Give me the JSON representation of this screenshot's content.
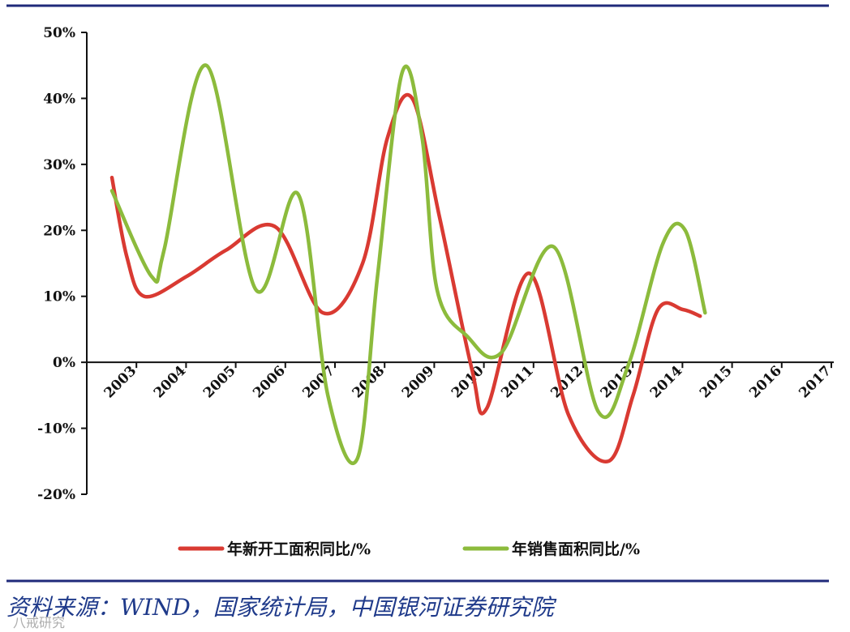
{
  "chart_data": {
    "type": "line",
    "categories": [
      "2003",
      "2004",
      "2005",
      "2006",
      "2007",
      "2008",
      "2009",
      "2010",
      "2011",
      "2012",
      "2013",
      "2014",
      "2015",
      "2016",
      "2017"
    ],
    "y_ticks": [
      "50%",
      "40%",
      "30%",
      "20%",
      "10%",
      "0%",
      "-10%",
      "-20%"
    ],
    "ylim": [
      -20,
      50
    ],
    "grid": false,
    "legend_position": "bottom",
    "series": [
      {
        "name": "年新开工面积同比/%",
        "color": "#d93a32",
        "points": [
          [
            0,
            28
          ],
          [
            0.3,
            16
          ],
          [
            0.65,
            10
          ],
          [
            1.5,
            13
          ],
          [
            2.3,
            17
          ],
          [
            3.3,
            20.5
          ],
          [
            4.25,
            7.5
          ],
          [
            5.05,
            15
          ],
          [
            5.55,
            34
          ],
          [
            6.05,
            40
          ],
          [
            6.6,
            22
          ],
          [
            7.25,
            -1
          ],
          [
            7.55,
            -7
          ],
          [
            8.4,
            13.5
          ],
          [
            9.2,
            -8
          ],
          [
            10.0,
            -15
          ],
          [
            10.5,
            -5
          ],
          [
            11.0,
            8
          ],
          [
            11.5,
            8
          ],
          [
            11.85,
            7
          ]
        ]
      },
      {
        "name": "年销售面积同比/%",
        "color": "#8cbb3c",
        "points": [
          [
            0,
            26
          ],
          [
            0.8,
            13
          ],
          [
            1.05,
            17
          ],
          [
            1.9,
            45
          ],
          [
            2.9,
            11
          ],
          [
            3.75,
            25.5
          ],
          [
            4.35,
            -5
          ],
          [
            4.95,
            -14.5
          ],
          [
            5.35,
            13
          ],
          [
            5.85,
            44
          ],
          [
            6.25,
            34
          ],
          [
            6.55,
            11
          ],
          [
            7.15,
            4
          ],
          [
            7.85,
            1.5
          ],
          [
            8.9,
            17.5
          ],
          [
            9.8,
            -7.5
          ],
          [
            10.4,
            -0.5
          ],
          [
            11.1,
            18
          ],
          [
            11.55,
            20
          ],
          [
            11.95,
            7.5
          ]
        ]
      }
    ]
  },
  "source_text": "资料来源：WIND，国家统计局，中国银河证券研究院",
  "watermark_text": "八戒研究"
}
